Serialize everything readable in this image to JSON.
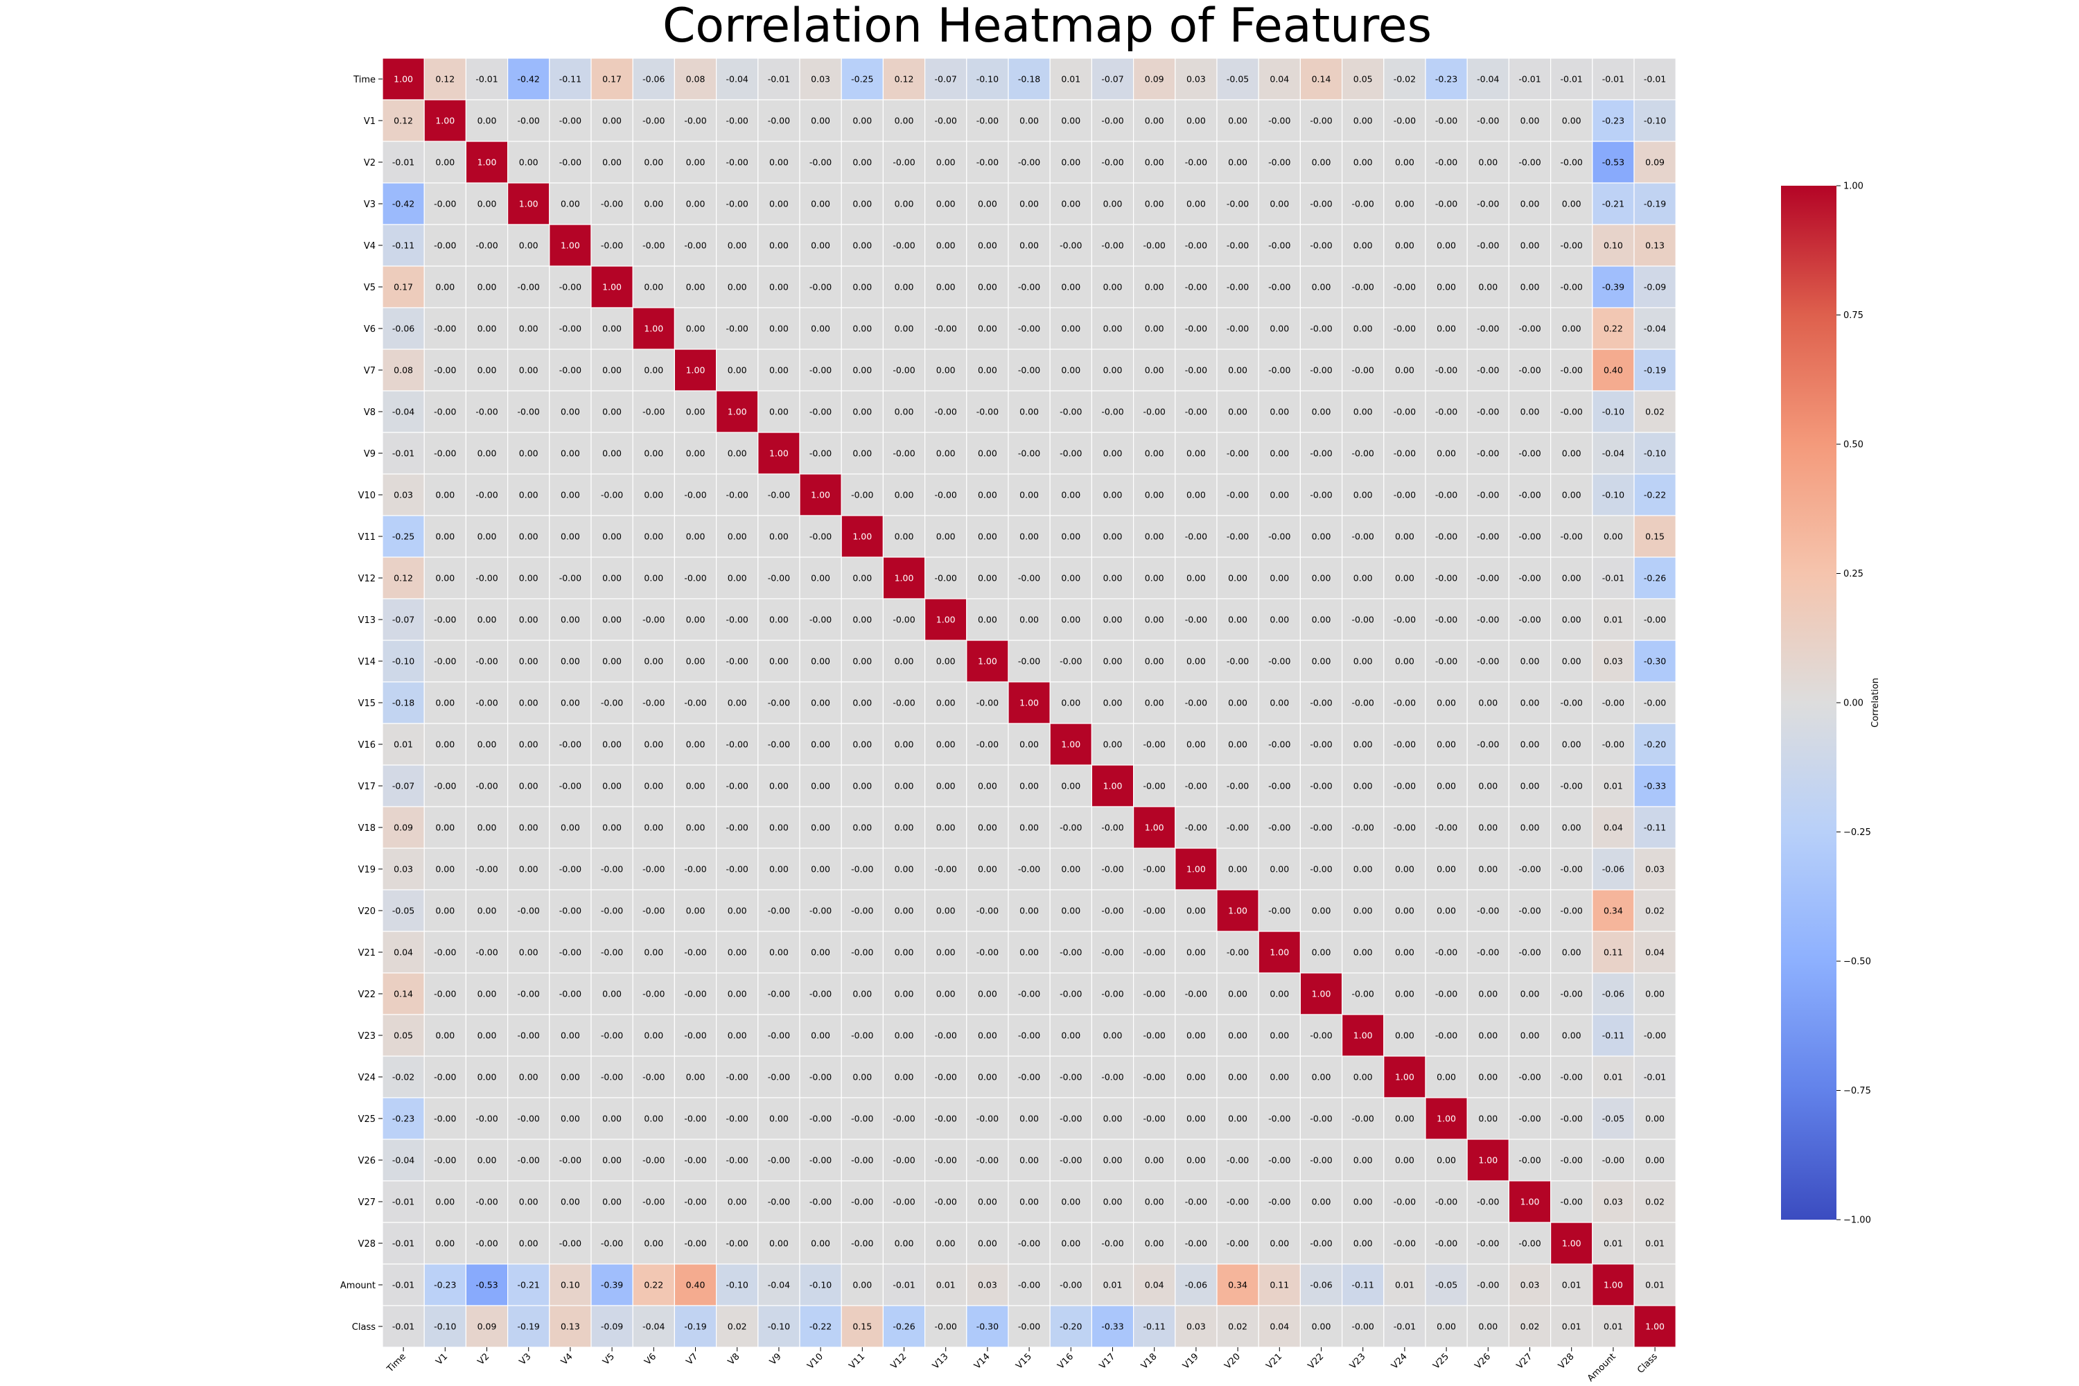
{
  "chart_data": {
    "type": "heatmap",
    "title": "Correlation Heatmap of Features",
    "labels": [
      "Time",
      "V1",
      "V2",
      "V3",
      "V4",
      "V5",
      "V6",
      "V7",
      "V8",
      "V9",
      "V10",
      "V11",
      "V12",
      "V13",
      "V14",
      "V15",
      "V16",
      "V17",
      "V18",
      "V19",
      "V20",
      "V21",
      "V22",
      "V23",
      "V24",
      "V25",
      "V26",
      "V27",
      "V28",
      "Amount",
      "Class"
    ],
    "cells": [
      [
        "1.00",
        "0.12",
        "-0.01",
        "-0.42",
        "-0.11",
        "0.17",
        "-0.06",
        "0.08",
        "-0.04",
        "-0.01",
        "0.03",
        "-0.25",
        "0.12",
        "-0.07",
        "-0.10",
        "-0.18",
        "0.01",
        "-0.07",
        "0.09",
        "0.03",
        "-0.05",
        "0.04",
        "0.14",
        "0.05",
        "-0.02",
        "-0.23",
        "-0.04",
        "-0.01",
        "-0.01",
        "-0.01",
        "-0.01"
      ],
      [
        "0.12",
        "1.00",
        "0.00",
        "-0.00",
        "-0.00",
        "0.00",
        "-0.00",
        "-0.00",
        "-0.00",
        "-0.00",
        "0.00",
        "0.00",
        "0.00",
        "-0.00",
        "-0.00",
        "0.00",
        "0.00",
        "-0.00",
        "0.00",
        "0.00",
        "0.00",
        "-0.00",
        "-0.00",
        "0.00",
        "-0.00",
        "-0.00",
        "-0.00",
        "0.00",
        "0.00",
        "-0.23",
        "-0.10"
      ],
      [
        "-0.01",
        "0.00",
        "1.00",
        "0.00",
        "-0.00",
        "0.00",
        "0.00",
        "0.00",
        "-0.00",
        "0.00",
        "-0.00",
        "0.00",
        "-0.00",
        "0.00",
        "-0.00",
        "-0.00",
        "0.00",
        "-0.00",
        "0.00",
        "-0.00",
        "0.00",
        "-0.00",
        "0.00",
        "0.00",
        "0.00",
        "-0.00",
        "0.00",
        "-0.00",
        "-0.00",
        "-0.53",
        "0.09"
      ],
      [
        "-0.42",
        "-0.00",
        "0.00",
        "1.00",
        "0.00",
        "-0.00",
        "0.00",
        "0.00",
        "-0.00",
        "0.00",
        "0.00",
        "0.00",
        "0.00",
        "0.00",
        "0.00",
        "0.00",
        "0.00",
        "0.00",
        "0.00",
        "0.00",
        "-0.00",
        "0.00",
        "-0.00",
        "-0.00",
        "0.00",
        "-0.00",
        "-0.00",
        "0.00",
        "0.00",
        "-0.21",
        "-0.19"
      ],
      [
        "-0.11",
        "-0.00",
        "-0.00",
        "0.00",
        "1.00",
        "-0.00",
        "-0.00",
        "-0.00",
        "0.00",
        "0.00",
        "0.00",
        "0.00",
        "-0.00",
        "0.00",
        "0.00",
        "0.00",
        "-0.00",
        "-0.00",
        "-0.00",
        "-0.00",
        "-0.00",
        "-0.00",
        "-0.00",
        "0.00",
        "0.00",
        "0.00",
        "-0.00",
        "0.00",
        "-0.00",
        "0.10",
        "0.13"
      ],
      [
        "0.17",
        "0.00",
        "0.00",
        "-0.00",
        "-0.00",
        "1.00",
        "0.00",
        "0.00",
        "0.00",
        "0.00",
        "-0.00",
        "0.00",
        "0.00",
        "0.00",
        "0.00",
        "-0.00",
        "0.00",
        "0.00",
        "0.00",
        "-0.00",
        "-0.00",
        "-0.00",
        "0.00",
        "-0.00",
        "-0.00",
        "0.00",
        "0.00",
        "0.00",
        "-0.00",
        "-0.39",
        "-0.09"
      ],
      [
        "-0.06",
        "-0.00",
        "0.00",
        "0.00",
        "-0.00",
        "0.00",
        "1.00",
        "0.00",
        "-0.00",
        "0.00",
        "0.00",
        "0.00",
        "0.00",
        "-0.00",
        "0.00",
        "-0.00",
        "0.00",
        "0.00",
        "0.00",
        "-0.00",
        "-0.00",
        "0.00",
        "-0.00",
        "0.00",
        "-0.00",
        "0.00",
        "-0.00",
        "-0.00",
        "0.00",
        "0.22",
        "-0.04"
      ],
      [
        "0.08",
        "-0.00",
        "0.00",
        "0.00",
        "-0.00",
        "0.00",
        "0.00",
        "1.00",
        "0.00",
        "0.00",
        "-0.00",
        "0.00",
        "-0.00",
        "0.00",
        "0.00",
        "-0.00",
        "0.00",
        "0.00",
        "0.00",
        "-0.00",
        "0.00",
        "-0.00",
        "-0.00",
        "-0.00",
        "0.00",
        "-0.00",
        "-0.00",
        "-0.00",
        "-0.00",
        "0.40",
        "-0.19"
      ],
      [
        "-0.04",
        "-0.00",
        "-0.00",
        "-0.00",
        "0.00",
        "0.00",
        "-0.00",
        "0.00",
        "1.00",
        "0.00",
        "-0.00",
        "0.00",
        "0.00",
        "-0.00",
        "-0.00",
        "0.00",
        "-0.00",
        "-0.00",
        "-0.00",
        "-0.00",
        "0.00",
        "0.00",
        "0.00",
        "0.00",
        "-0.00",
        "-0.00",
        "-0.00",
        "0.00",
        "-0.00",
        "-0.10",
        "0.02"
      ],
      [
        "-0.01",
        "-0.00",
        "0.00",
        "0.00",
        "0.00",
        "0.00",
        "0.00",
        "0.00",
        "0.00",
        "1.00",
        "-0.00",
        "0.00",
        "-0.00",
        "0.00",
        "0.00",
        "-0.00",
        "-0.00",
        "0.00",
        "0.00",
        "0.00",
        "-0.00",
        "0.00",
        "-0.00",
        "-0.00",
        "-0.00",
        "0.00",
        "-0.00",
        "-0.00",
        "0.00",
        "-0.04",
        "-0.10"
      ],
      [
        "0.03",
        "0.00",
        "-0.00",
        "0.00",
        "0.00",
        "-0.00",
        "0.00",
        "-0.00",
        "-0.00",
        "-0.00",
        "1.00",
        "-0.00",
        "0.00",
        "-0.00",
        "0.00",
        "0.00",
        "0.00",
        "0.00",
        "0.00",
        "0.00",
        "-0.00",
        "0.00",
        "-0.00",
        "0.00",
        "-0.00",
        "-0.00",
        "-0.00",
        "-0.00",
        "0.00",
        "-0.10",
        "-0.22"
      ],
      [
        "-0.25",
        "0.00",
        "0.00",
        "0.00",
        "0.00",
        "0.00",
        "0.00",
        "0.00",
        "0.00",
        "0.00",
        "-0.00",
        "1.00",
        "0.00",
        "0.00",
        "0.00",
        "0.00",
        "0.00",
        "0.00",
        "0.00",
        "-0.00",
        "-0.00",
        "-0.00",
        "0.00",
        "-0.00",
        "0.00",
        "-0.00",
        "-0.00",
        "-0.00",
        "-0.00",
        "0.00",
        "0.15"
      ],
      [
        "0.12",
        "0.00",
        "-0.00",
        "0.00",
        "-0.00",
        "0.00",
        "0.00",
        "-0.00",
        "0.00",
        "-0.00",
        "0.00",
        "0.00",
        "1.00",
        "-0.00",
        "0.00",
        "-0.00",
        "0.00",
        "0.00",
        "0.00",
        "0.00",
        "0.00",
        "0.00",
        "0.00",
        "0.00",
        "0.00",
        "-0.00",
        "-0.00",
        "-0.00",
        "0.00",
        "-0.01",
        "-0.26"
      ],
      [
        "-0.07",
        "-0.00",
        "0.00",
        "0.00",
        "0.00",
        "0.00",
        "-0.00",
        "0.00",
        "-0.00",
        "0.00",
        "-0.00",
        "0.00",
        "-0.00",
        "1.00",
        "0.00",
        "0.00",
        "0.00",
        "0.00",
        "0.00",
        "-0.00",
        "0.00",
        "0.00",
        "0.00",
        "-0.00",
        "-0.00",
        "-0.00",
        "-0.00",
        "-0.00",
        "0.00",
        "0.01",
        "-0.00"
      ],
      [
        "-0.10",
        "-0.00",
        "-0.00",
        "0.00",
        "0.00",
        "0.00",
        "0.00",
        "0.00",
        "-0.00",
        "0.00",
        "0.00",
        "0.00",
        "0.00",
        "0.00",
        "1.00",
        "-0.00",
        "-0.00",
        "0.00",
        "0.00",
        "0.00",
        "-0.00",
        "-0.00",
        "0.00",
        "0.00",
        "0.00",
        "-0.00",
        "-0.00",
        "0.00",
        "0.00",
        "0.03",
        "-0.30"
      ],
      [
        "-0.18",
        "0.00",
        "-0.00",
        "0.00",
        "0.00",
        "-0.00",
        "-0.00",
        "-0.00",
        "0.00",
        "-0.00",
        "0.00",
        "0.00",
        "-0.00",
        "0.00",
        "-0.00",
        "1.00",
        "0.00",
        "0.00",
        "0.00",
        "-0.00",
        "0.00",
        "0.00",
        "-0.00",
        "-0.00",
        "-0.00",
        "0.00",
        "0.00",
        "0.00",
        "-0.00",
        "-0.00",
        "-0.00"
      ],
      [
        "0.01",
        "0.00",
        "0.00",
        "0.00",
        "-0.00",
        "0.00",
        "0.00",
        "0.00",
        "-0.00",
        "-0.00",
        "0.00",
        "0.00",
        "0.00",
        "0.00",
        "-0.00",
        "0.00",
        "1.00",
        "0.00",
        "-0.00",
        "0.00",
        "0.00",
        "-0.00",
        "-0.00",
        "0.00",
        "-0.00",
        "0.00",
        "-0.00",
        "0.00",
        "0.00",
        "-0.00",
        "-0.20"
      ],
      [
        "-0.07",
        "-0.00",
        "-0.00",
        "0.00",
        "-0.00",
        "0.00",
        "0.00",
        "0.00",
        "-0.00",
        "0.00",
        "0.00",
        "0.00",
        "0.00",
        "0.00",
        "0.00",
        "0.00",
        "0.00",
        "1.00",
        "-0.00",
        "-0.00",
        "-0.00",
        "-0.00",
        "-0.00",
        "0.00",
        "-0.00",
        "0.00",
        "0.00",
        "0.00",
        "-0.00",
        "0.01",
        "-0.33"
      ],
      [
        "0.09",
        "0.00",
        "0.00",
        "0.00",
        "0.00",
        "0.00",
        "0.00",
        "0.00",
        "-0.00",
        "0.00",
        "0.00",
        "0.00",
        "0.00",
        "0.00",
        "0.00",
        "0.00",
        "-0.00",
        "-0.00",
        "1.00",
        "-0.00",
        "-0.00",
        "-0.00",
        "-0.00",
        "-0.00",
        "-0.00",
        "-0.00",
        "0.00",
        "0.00",
        "0.00",
        "0.04",
        "-0.11"
      ],
      [
        "0.03",
        "0.00",
        "-0.00",
        "0.00",
        "-0.00",
        "-0.00",
        "-0.00",
        "-0.00",
        "-0.00",
        "0.00",
        "0.00",
        "-0.00",
        "0.00",
        "-0.00",
        "0.00",
        "-0.00",
        "0.00",
        "-0.00",
        "-0.00",
        "1.00",
        "0.00",
        "0.00",
        "-0.00",
        "0.00",
        "0.00",
        "0.00",
        "0.00",
        "-0.00",
        "-0.00",
        "-0.06",
        "0.03"
      ],
      [
        "-0.05",
        "0.00",
        "0.00",
        "-0.00",
        "-0.00",
        "-0.00",
        "-0.00",
        "0.00",
        "0.00",
        "-0.00",
        "-0.00",
        "-0.00",
        "0.00",
        "0.00",
        "-0.00",
        "0.00",
        "0.00",
        "-0.00",
        "-0.00",
        "0.00",
        "1.00",
        "-0.00",
        "0.00",
        "0.00",
        "0.00",
        "0.00",
        "-0.00",
        "-0.00",
        "-0.00",
        "0.34",
        "0.02"
      ],
      [
        "0.04",
        "-0.00",
        "-0.00",
        "0.00",
        "-0.00",
        "-0.00",
        "0.00",
        "-0.00",
        "0.00",
        "0.00",
        "0.00",
        "-0.00",
        "0.00",
        "0.00",
        "-0.00",
        "0.00",
        "-0.00",
        "-0.00",
        "-0.00",
        "0.00",
        "-0.00",
        "1.00",
        "0.00",
        "0.00",
        "0.00",
        "-0.00",
        "-0.00",
        "-0.00",
        "0.00",
        "0.11",
        "0.04"
      ],
      [
        "0.14",
        "-0.00",
        "0.00",
        "-0.00",
        "-0.00",
        "0.00",
        "-0.00",
        "-0.00",
        "0.00",
        "-0.00",
        "-0.00",
        "0.00",
        "0.00",
        "0.00",
        "0.00",
        "-0.00",
        "-0.00",
        "-0.00",
        "-0.00",
        "-0.00",
        "0.00",
        "0.00",
        "1.00",
        "-0.00",
        "0.00",
        "-0.00",
        "0.00",
        "0.00",
        "-0.00",
        "-0.06",
        "0.00"
      ],
      [
        "0.05",
        "0.00",
        "0.00",
        "-0.00",
        "0.00",
        "-0.00",
        "0.00",
        "-0.00",
        "0.00",
        "-0.00",
        "0.00",
        "-0.00",
        "0.00",
        "-0.00",
        "0.00",
        "-0.00",
        "0.00",
        "0.00",
        "-0.00",
        "0.00",
        "0.00",
        "0.00",
        "-0.00",
        "1.00",
        "0.00",
        "-0.00",
        "0.00",
        "0.00",
        "0.00",
        "-0.11",
        "-0.00"
      ],
      [
        "-0.02",
        "-0.00",
        "0.00",
        "0.00",
        "0.00",
        "-0.00",
        "-0.00",
        "0.00",
        "-0.00",
        "-0.00",
        "-0.00",
        "0.00",
        "0.00",
        "-0.00",
        "0.00",
        "-0.00",
        "-0.00",
        "-0.00",
        "-0.00",
        "0.00",
        "0.00",
        "0.00",
        "0.00",
        "0.00",
        "1.00",
        "0.00",
        "0.00",
        "-0.00",
        "-0.00",
        "0.01",
        "-0.01"
      ],
      [
        "-0.23",
        "-0.00",
        "-0.00",
        "-0.00",
        "0.00",
        "0.00",
        "0.00",
        "-0.00",
        "-0.00",
        "0.00",
        "-0.00",
        "-0.00",
        "-0.00",
        "-0.00",
        "-0.00",
        "0.00",
        "-0.00",
        "0.00",
        "-0.00",
        "0.00",
        "0.00",
        "-0.00",
        "-0.00",
        "-0.00",
        "0.00",
        "1.00",
        "0.00",
        "-0.00",
        "-0.00",
        "-0.05",
        "0.00"
      ],
      [
        "-0.04",
        "-0.00",
        "0.00",
        "-0.00",
        "-0.00",
        "0.00",
        "-0.00",
        "-0.00",
        "-0.00",
        "-0.00",
        "-0.00",
        "-0.00",
        "-0.00",
        "-0.00",
        "-0.00",
        "0.00",
        "-0.00",
        "0.00",
        "0.00",
        "0.00",
        "-0.00",
        "-0.00",
        "-0.00",
        "0.00",
        "0.00",
        "0.00",
        "1.00",
        "-0.00",
        "-0.00",
        "-0.00",
        "0.00"
      ],
      [
        "-0.01",
        "0.00",
        "-0.00",
        "0.00",
        "0.00",
        "0.00",
        "-0.00",
        "-0.00",
        "0.00",
        "-0.00",
        "-0.00",
        "-0.00",
        "-0.00",
        "-0.00",
        "0.00",
        "0.00",
        "0.00",
        "0.00",
        "0.00",
        "-0.00",
        "-0.00",
        "-0.00",
        "0.00",
        "0.00",
        "-0.00",
        "-0.00",
        "-0.00",
        "1.00",
        "-0.00",
        "0.03",
        "0.02"
      ],
      [
        "-0.01",
        "0.00",
        "-0.00",
        "0.00",
        "-0.00",
        "-0.00",
        "0.00",
        "-0.00",
        "-0.00",
        "0.00",
        "0.00",
        "-0.00",
        "0.00",
        "0.00",
        "0.00",
        "-0.00",
        "0.00",
        "-0.00",
        "0.00",
        "-0.00",
        "-0.00",
        "0.00",
        "-0.00",
        "0.00",
        "-0.00",
        "-0.00",
        "-0.00",
        "-0.00",
        "1.00",
        "0.01",
        "0.01"
      ],
      [
        "-0.01",
        "-0.23",
        "-0.53",
        "-0.21",
        "0.10",
        "-0.39",
        "0.22",
        "0.40",
        "-0.10",
        "-0.04",
        "-0.10",
        "0.00",
        "-0.01",
        "0.01",
        "0.03",
        "-0.00",
        "-0.00",
        "0.01",
        "0.04",
        "-0.06",
        "0.34",
        "0.11",
        "-0.06",
        "-0.11",
        "0.01",
        "-0.05",
        "-0.00",
        "0.03",
        "0.01",
        "1.00",
        "0.01"
      ],
      [
        "-0.01",
        "-0.10",
        "0.09",
        "-0.19",
        "0.13",
        "-0.09",
        "-0.04",
        "-0.19",
        "0.02",
        "-0.10",
        "-0.22",
        "0.15",
        "-0.26",
        "-0.00",
        "-0.30",
        "-0.00",
        "-0.20",
        "-0.33",
        "-0.11",
        "0.03",
        "0.02",
        "0.04",
        "0.00",
        "-0.00",
        "-0.01",
        "0.00",
        "0.00",
        "0.02",
        "0.01",
        "0.01",
        "1.00"
      ]
    ],
    "colorbar": {
      "label": "Correlation",
      "range": [
        -1,
        1
      ],
      "ticks": [
        "1.00",
        "0.75",
        "0.50",
        "0.25",
        "0.00",
        "−0.25",
        "−0.50",
        "−0.75",
        "−1.00"
      ],
      "colormap": "coolwarm"
    },
    "grid_lines": true
  }
}
